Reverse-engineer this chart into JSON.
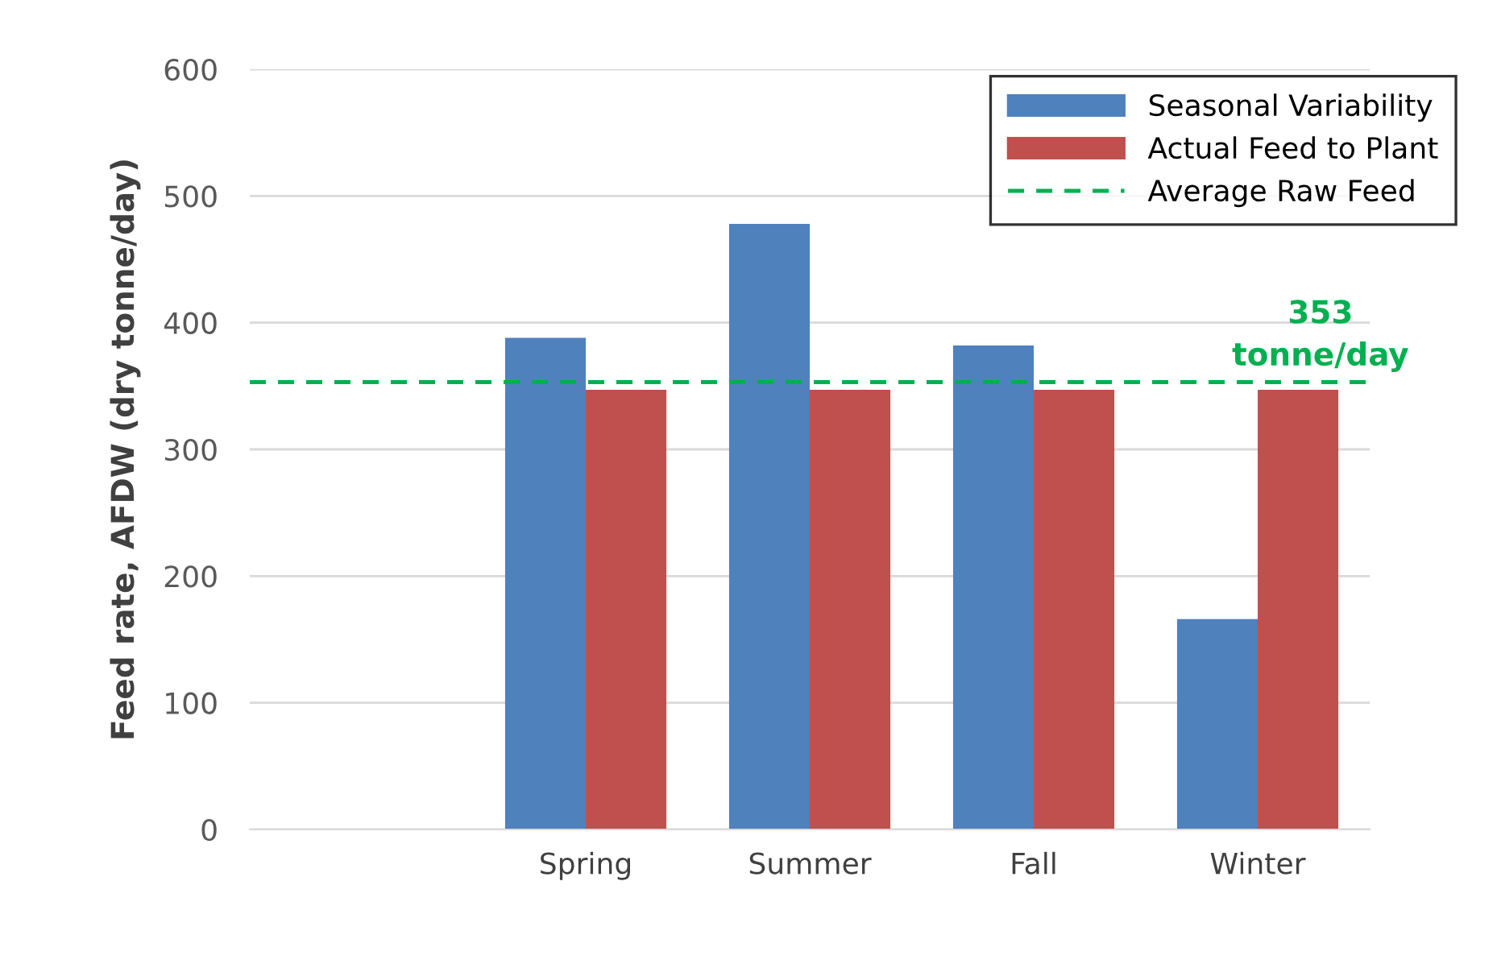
{
  "chart_data": {
    "type": "bar",
    "ylabel": "Feed rate, AFDW (dry tonne/day)",
    "categories": [
      null,
      "Spring",
      "Summer",
      "Fall",
      "Winter"
    ],
    "series": [
      {
        "name": "Seasonal Variability",
        "color": "#4f81bd",
        "values": [
          null,
          388,
          478,
          382,
          166
        ]
      },
      {
        "name": "Actual Feed to Plant",
        "color": "#c0504d",
        "values": [
          null,
          347,
          347,
          347,
          347
        ]
      }
    ],
    "ref_lines": [
      {
        "axis": "y",
        "value": 353,
        "label": "Average Raw Feed",
        "color": "#00b050",
        "line_style": "dashed"
      }
    ],
    "annotations": [
      {
        "text": "353\ntonne/day",
        "y": 353
      }
    ],
    "ylim": [
      0,
      600
    ],
    "yticks": [
      0,
      100,
      200,
      300,
      400,
      500,
      600
    ],
    "grid": "y",
    "legend": "top right"
  }
}
